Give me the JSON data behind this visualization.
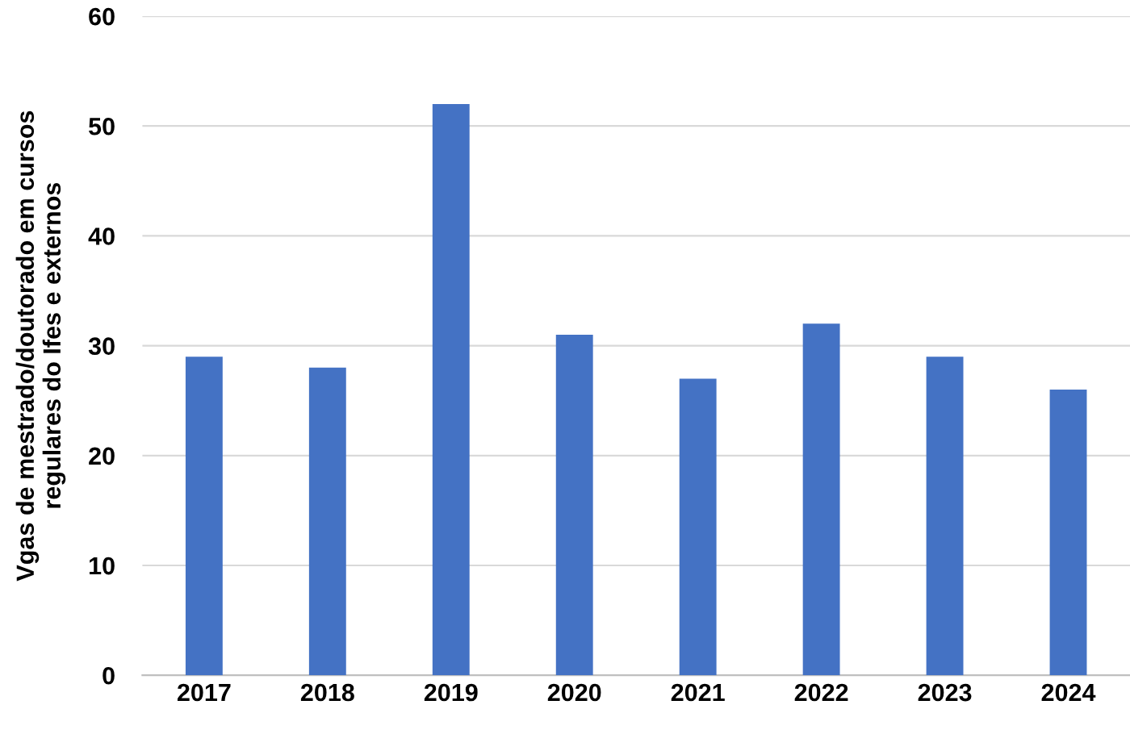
{
  "chart_data": {
    "type": "bar",
    "ylabel": "Vgas de mestrado/doutorado em cursos\nregulares do Ifes e externos",
    "categories": [
      "2017",
      "2018",
      "2019",
      "2020",
      "2021",
      "2022",
      "2023",
      "2024"
    ],
    "values": [
      29,
      28,
      52,
      31,
      27,
      32,
      29,
      26
    ],
    "color": "#4472c4",
    "ylim": [
      0,
      60
    ],
    "yticks": [
      0,
      10,
      20,
      30,
      40,
      50,
      60
    ],
    "grid": "y",
    "legend": false
  }
}
